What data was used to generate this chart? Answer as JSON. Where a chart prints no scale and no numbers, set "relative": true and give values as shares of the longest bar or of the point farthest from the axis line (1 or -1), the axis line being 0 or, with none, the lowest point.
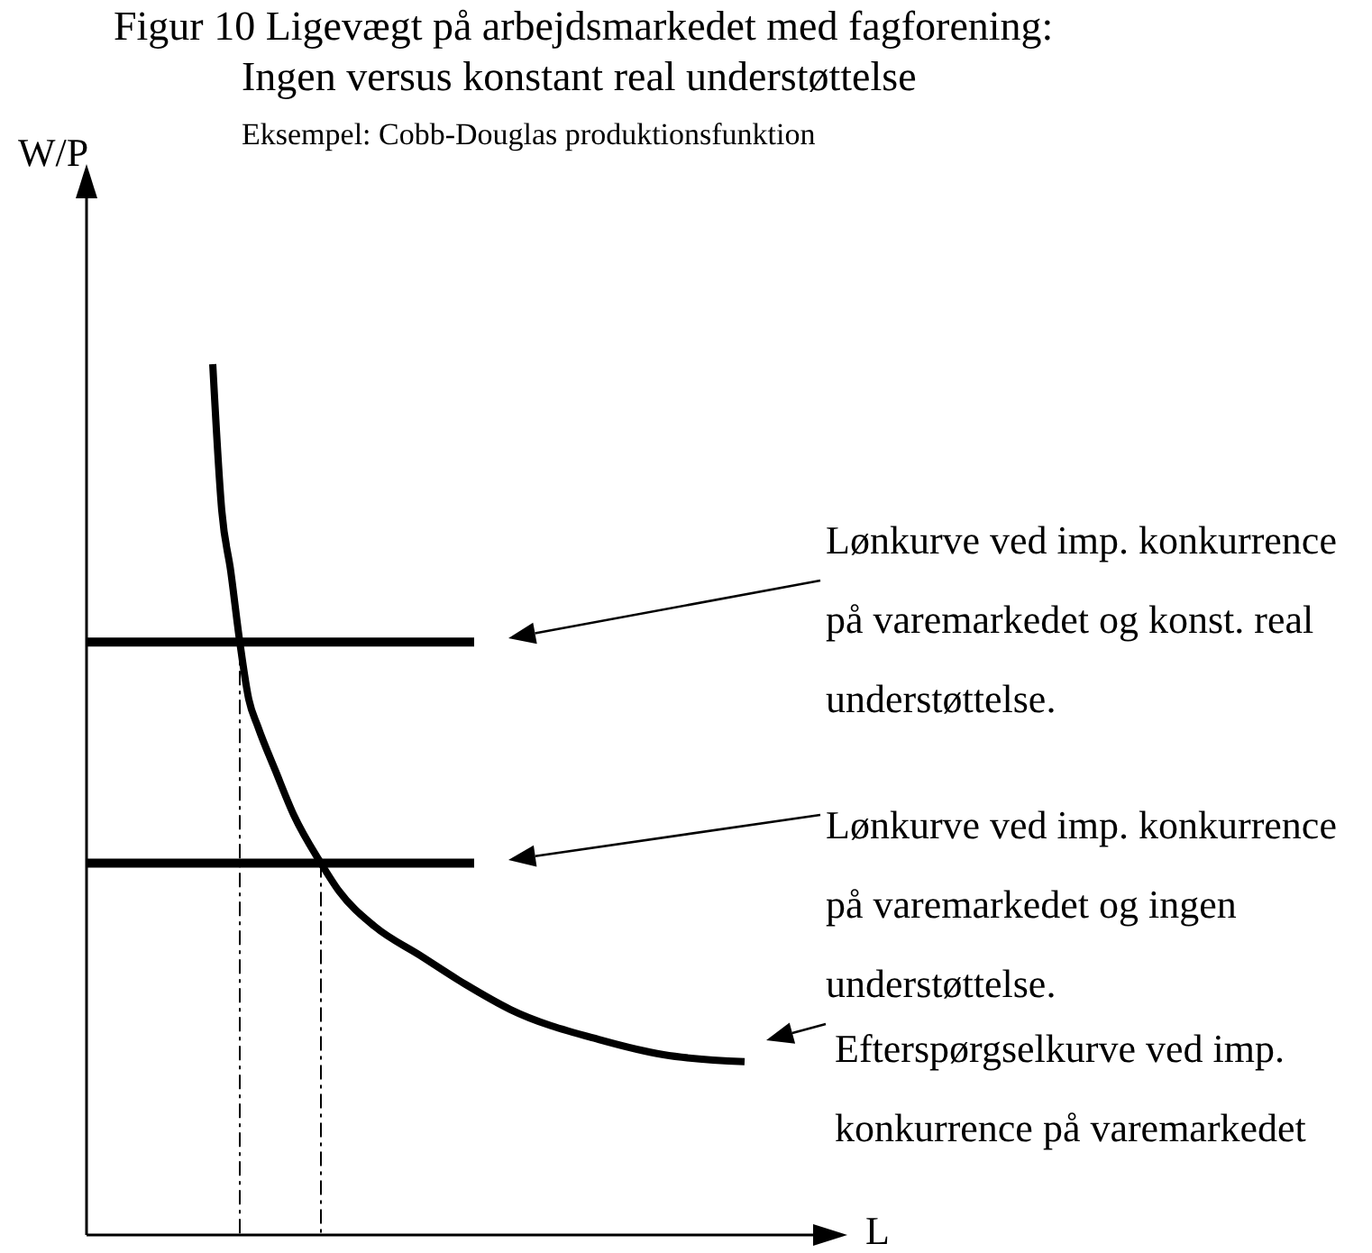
{
  "chart_data": {
    "type": "line",
    "relative": true,
    "title": "Figur 10 Ligevægt på arbejdsmarkedet med fagforening:",
    "subtitle": "Ingen versus konstant real understøttelse",
    "xlabel": "L",
    "ylabel": "W/P",
    "categories": [
      null,
      null,
      null,
      null,
      null,
      null,
      null,
      null,
      null,
      null,
      null,
      null,
      null,
      null,
      null,
      null,
      null,
      null,
      null,
      null,
      null,
      null,
      null,
      null,
      null,
      null,
      null,
      null,
      null,
      null,
      null,
      null,
      null,
      null,
      null,
      null,
      null,
      null,
      null,
      null,
      null,
      null,
      null,
      null,
      null,
      null,
      null,
      null,
      null,
      null,
      null,
      null,
      null,
      null,
      null,
      null,
      null,
      null,
      null,
      null,
      null,
      null,
      null,
      null,
      null,
      null,
      null,
      null,
      null,
      null,
      null,
      null,
      null,
      null,
      null,
      null,
      null,
      null,
      null,
      null,
      null,
      null,
      null
    ],
    "series": [
      {
        "color": "#000000",
        "values": [
          0.681,
          0.681,
          0.681,
          0.681,
          0.681,
          0.681,
          0.681,
          0.681,
          0.681,
          0.681,
          0.681,
          0.681,
          0.681,
          0.681,
          0.681,
          0.681,
          0.681,
          0.681,
          0.681,
          0.681,
          0.681,
          0.681,
          0.681,
          0.681,
          0.681,
          0.681,
          0.681,
          0.681,
          0.681,
          0.681,
          0.681,
          0.681,
          0.681,
          0.681,
          0.681,
          0.681,
          0.681,
          0.681,
          0.681,
          0.681,
          0.681,
          0.681,
          0.681,
          0.681,
          null,
          null,
          null,
          null,
          null,
          null,
          null,
          null,
          null,
          null,
          null,
          null,
          null,
          null,
          null,
          null,
          null,
          null,
          null,
          null,
          null,
          null,
          null,
          null,
          null,
          null,
          null,
          null,
          null,
          null,
          null,
          null,
          null,
          null,
          null,
          null,
          null,
          null,
          null
        ]
      },
      {
        "color": "#000000",
        "values": [
          0.427,
          0.427,
          0.427,
          0.427,
          0.427,
          0.427,
          0.427,
          0.427,
          0.427,
          0.427,
          0.427,
          0.427,
          0.427,
          0.427,
          0.427,
          0.427,
          0.427,
          0.427,
          0.427,
          0.427,
          0.427,
          0.427,
          0.427,
          0.427,
          0.427,
          0.427,
          0.427,
          0.427,
          0.427,
          0.427,
          0.427,
          0.427,
          0.427,
          0.427,
          0.427,
          0.427,
          0.427,
          0.427,
          0.427,
          0.427,
          0.427,
          0.427,
          0.427,
          0.427,
          null,
          null,
          null,
          null,
          null,
          null,
          null,
          null,
          null,
          null,
          null,
          null,
          null,
          null,
          null,
          null,
          null,
          null,
          null,
          null,
          null,
          null,
          null,
          null,
          null,
          null,
          null,
          null,
          null,
          null,
          null,
          null,
          null,
          null,
          null,
          null,
          null,
          null,
          null
        ]
      },
      {
        "color": "#000000",
        "values": [
          null,
          null,
          null,
          null,
          null,
          null,
          null,
          null,
          null,
          null,
          null,
          null,
          null,
          null,
          1.0,
          0.832,
          0.762,
          0.681,
          0.615,
          0.584,
          null,
          0.532,
          null,
          0.482,
          null,
          null,
          0.427,
          null,
          0.395,
          null,
          null,
          null,
          0.354,
          null,
          null,
          null,
          null,
          0.321,
          null,
          null,
          null,
          null,
          0.288,
          null,
          null,
          null,
          null,
          0.259,
          null,
          null,
          null,
          null,
          null,
          null,
          null,
          null,
          null,
          0.224,
          null,
          null,
          null,
          null,
          null,
          null,
          0.207,
          null,
          null,
          null,
          null,
          null,
          null,
          null,
          null,
          0.199,
          null,
          null,
          null,
          null,
          null,
          null,
          null,
          null,
          null
        ]
      }
    ],
    "annotations": [
      "Eksempel: Cobb-Douglas produktionsfunktion",
      "Lønkurve ved imp. konkurrence på varemarkedet og konst. real understøttelse.",
      "Lønkurve ved imp. konkurrence på varemarkedet og ingen understøttelse.",
      "Efterspørgselkurve ved imp. konkurrence på varemarkedet"
    ],
    "grid": false
  }
}
